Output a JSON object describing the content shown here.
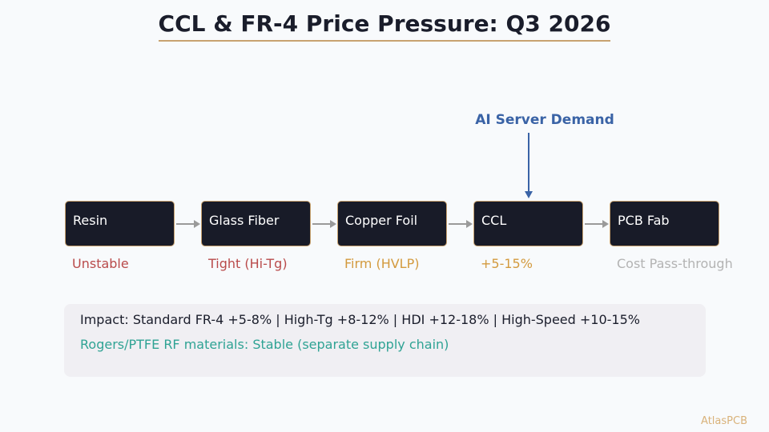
{
  "title": "CCL & FR-4 Price Pressure: Q3 2026",
  "demand_label": "AI Server Demand",
  "chain": [
    {
      "label": "Resin",
      "status": "Unstable",
      "status_color": "#b94a4a"
    },
    {
      "label": "Glass Fiber",
      "status": "Tight (Hi-Tg)",
      "status_color": "#b94a4a"
    },
    {
      "label": "Copper Foil",
      "status": "Firm (HVLP)",
      "status_color": "#d39a3e"
    },
    {
      "label": "CCL",
      "status": "+5-15%",
      "status_color": "#d39a3e"
    },
    {
      "label": "PCB Fab",
      "status": "Cost Pass-through",
      "status_color": "#b3b3b3"
    }
  ],
  "impact": {
    "line1": "Impact: Standard FR-4 +5-8%  |  High-Tg +8-12%  |  HDI +12-18%  |  High-Speed +10-15%",
    "line2": "Rogers/PTFE RF materials: Stable (separate supply chain)"
  },
  "brand": "AtlasPCB"
}
